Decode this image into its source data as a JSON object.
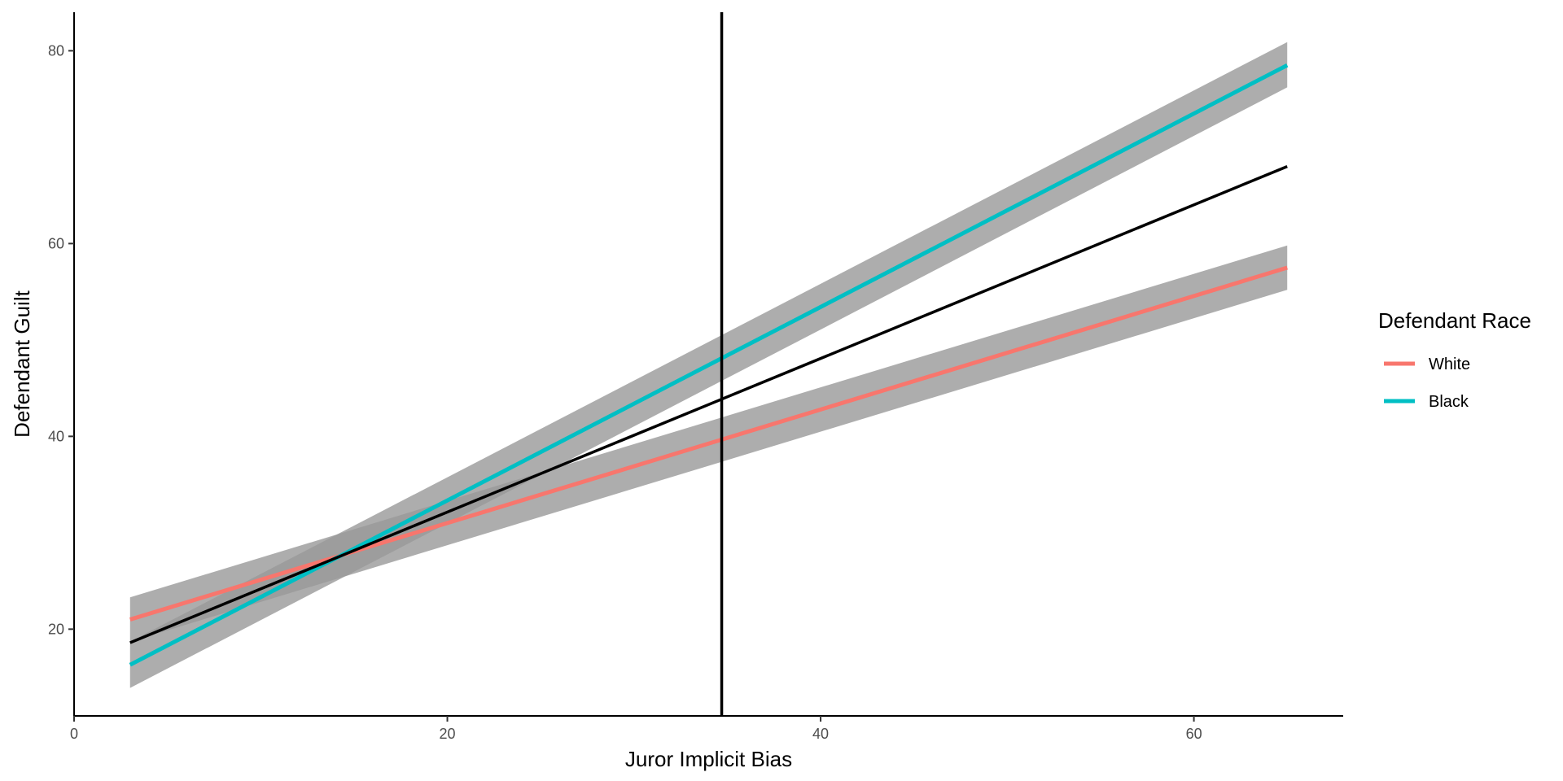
{
  "chart_data": {
    "type": "line",
    "title": "",
    "xlabel": "Juror Implicit Bias",
    "ylabel": "Defendant Guilt",
    "xlim": [
      0,
      68
    ],
    "ylim": [
      11,
      84
    ],
    "x_ticks": [
      0,
      20,
      40,
      60
    ],
    "y_ticks": [
      20,
      40,
      60,
      80
    ],
    "grid": false,
    "legend": {
      "title": "Defendant Race",
      "position": "right"
    },
    "series": [
      {
        "name": "White",
        "color": "#F8766D",
        "x": [
          3,
          65
        ],
        "y": [
          21.0,
          57.5
        ],
        "ci_lower": [
          18.7,
          55.2
        ],
        "ci_upper": [
          23.3,
          59.8
        ]
      },
      {
        "name": "Black",
        "color": "#00BFC4",
        "x": [
          3,
          65
        ],
        "y": [
          16.3,
          78.5
        ],
        "ci_lower": [
          13.9,
          76.2
        ],
        "ci_upper": [
          18.7,
          80.9
        ]
      },
      {
        "name": "",
        "color": "#000000",
        "x": [
          3,
          65
        ],
        "y": [
          18.6,
          68.0
        ]
      }
    ],
    "vline": {
      "x": 34.7,
      "color": "#000000"
    },
    "ribbon_color": "#999999"
  }
}
